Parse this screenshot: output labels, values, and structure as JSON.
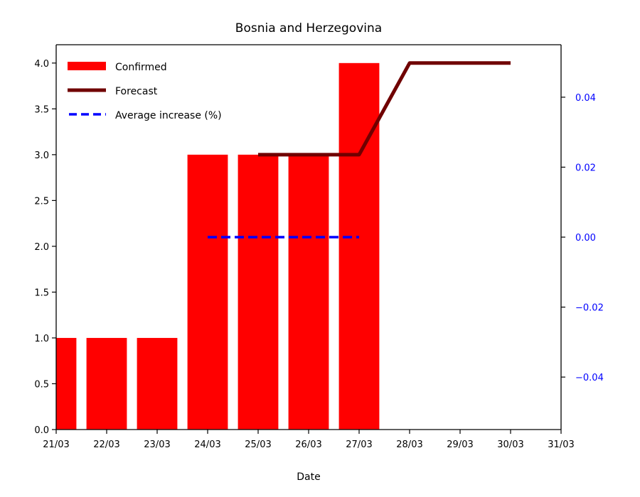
{
  "chart_data": {
    "type": "bar",
    "title": "Bosnia and Herzegovina",
    "xlabel": "Date",
    "ylabel": "",
    "x_ticks": [
      "21/03",
      "22/03",
      "23/03",
      "24/03",
      "25/03",
      "26/03",
      "27/03",
      "28/03",
      "29/03",
      "30/03",
      "31/03"
    ],
    "xlim": [
      0,
      10
    ],
    "ylim": [
      0,
      4.2
    ],
    "y_ticks": [
      0.0,
      0.5,
      1.0,
      1.5,
      2.0,
      2.5,
      3.0,
      3.5,
      4.0
    ],
    "y_tick_labels": [
      "0.0",
      "0.5",
      "1.0",
      "1.5",
      "2.0",
      "2.5",
      "3.0",
      "3.5",
      "4.0"
    ],
    "y2lim": [
      -0.055,
      0.055
    ],
    "y2_ticks": [
      -0.04,
      -0.02,
      0.0,
      0.02,
      0.04
    ],
    "y2_tick_labels": [
      "−0.04",
      "−0.02",
      "0.00",
      "0.02",
      "0.04"
    ],
    "legend_position": "top-left",
    "series": [
      {
        "name": "Confirmed",
        "kind": "bar",
        "axis": "left",
        "color": "#ff0000",
        "points": [
          {
            "x": "21/03",
            "y": 1
          },
          {
            "x": "22/03",
            "y": 1
          },
          {
            "x": "23/03",
            "y": 1
          },
          {
            "x": "24/03",
            "y": 3
          },
          {
            "x": "25/03",
            "y": 3
          },
          {
            "x": "26/03",
            "y": 3
          },
          {
            "x": "27/03",
            "y": 4
          }
        ]
      },
      {
        "name": "Forecast",
        "kind": "line",
        "axis": "left",
        "color": "#700000",
        "points": [
          {
            "x": "25/03",
            "y": 3
          },
          {
            "x": "26/03",
            "y": 3
          },
          {
            "x": "27/03",
            "y": 3
          },
          {
            "x": "28/03",
            "y": 4
          },
          {
            "x": "29/03",
            "y": 4
          },
          {
            "x": "30/03",
            "y": 4
          }
        ]
      },
      {
        "name": "Average increase (%)",
        "kind": "dashed-line",
        "axis": "right",
        "color": "#0000ff",
        "points": [
          {
            "x": "24/03",
            "y": 0.0
          },
          {
            "x": "25/03",
            "y": 0.0
          },
          {
            "x": "26/03",
            "y": 0.0
          },
          {
            "x": "27/03",
            "y": 0.0
          }
        ]
      }
    ],
    "colors": {
      "axis": "#000000",
      "right_axis": "#0000ff"
    }
  }
}
